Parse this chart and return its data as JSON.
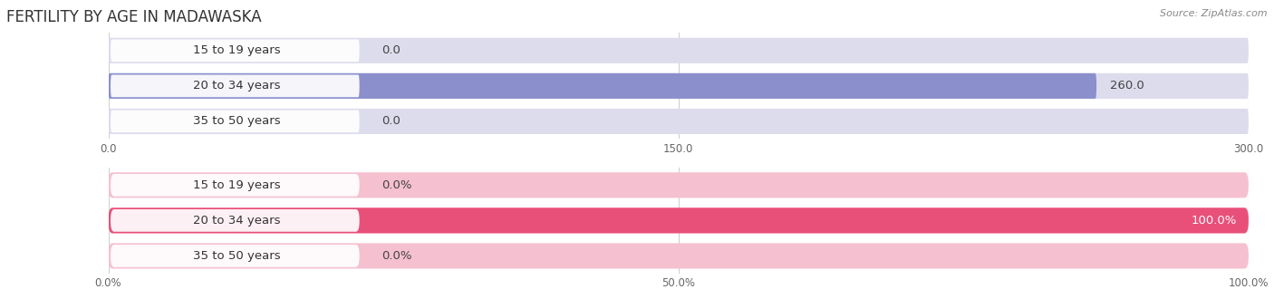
{
  "title": "FERTILITY BY AGE IN MADAWASKA",
  "source": "Source: ZipAtlas.com",
  "top_chart": {
    "categories": [
      "15 to 19 years",
      "20 to 34 years",
      "35 to 50 years"
    ],
    "values": [
      0.0,
      260.0,
      0.0
    ],
    "bar_color": "#8b8fcc",
    "bar_bg_color": "#dcdcec",
    "pill_left_color": "#c8c8e8",
    "xlim": [
      0,
      300
    ],
    "xticks": [
      0.0,
      150.0,
      300.0
    ],
    "xtick_labels": [
      "0.0",
      "150.0",
      "300.0"
    ],
    "value_labels": [
      "0.0",
      "260.0",
      "0.0"
    ]
  },
  "bottom_chart": {
    "categories": [
      "15 to 19 years",
      "20 to 34 years",
      "35 to 50 years"
    ],
    "values": [
      0.0,
      100.0,
      0.0
    ],
    "bar_color": "#e8507a",
    "bar_bg_color": "#f5c0d0",
    "pill_left_color": "#f0a0be",
    "xlim": [
      0,
      100
    ],
    "xticks": [
      0.0,
      50.0,
      100.0
    ],
    "xtick_labels": [
      "0.0%",
      "50.0%",
      "100.0%"
    ],
    "value_labels": [
      "0.0%",
      "100.0%",
      "0.0%"
    ]
  },
  "fig_bg_color": "#ffffff",
  "plot_bg_color": "#ffffff",
  "row_bg_color": "#efefef",
  "bar_height": 0.72,
  "label_fontsize": 9.5,
  "tick_fontsize": 8.5,
  "title_fontsize": 12,
  "source_fontsize": 8
}
